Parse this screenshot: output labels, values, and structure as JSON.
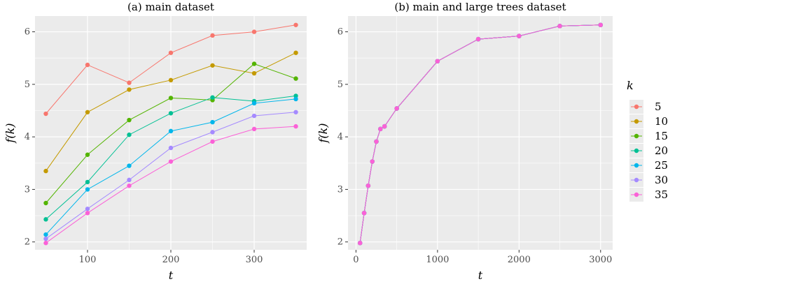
{
  "chart_data": [
    {
      "type": "line",
      "title": "(a) main dataset",
      "xlabel": "t",
      "ylabel": "f(k)",
      "xlim": [
        37,
        363
      ],
      "ylim": [
        1.85,
        6.3
      ],
      "xticks": [
        100,
        200,
        300
      ],
      "yticks": [
        2,
        3,
        4,
        5,
        6
      ],
      "x": [
        50,
        100,
        150,
        200,
        250,
        300,
        350
      ],
      "series": [
        {
          "name": "5",
          "color": "#F8766D",
          "values": [
            4.44,
            5.37,
            5.03,
            5.6,
            5.93,
            6.0,
            6.13
          ]
        },
        {
          "name": "10",
          "color": "#C49A00",
          "values": [
            3.35,
            4.47,
            4.9,
            5.08,
            5.36,
            5.21,
            5.6
          ]
        },
        {
          "name": "15",
          "color": "#53B400",
          "values": [
            2.74,
            3.66,
            4.32,
            4.74,
            4.7,
            5.39,
            5.11
          ]
        },
        {
          "name": "20",
          "color": "#00C094",
          "values": [
            2.43,
            3.14,
            4.04,
            4.45,
            4.75,
            4.68,
            4.78
          ]
        },
        {
          "name": "25",
          "color": "#00B6EB",
          "values": [
            2.14,
            3.0,
            3.45,
            4.11,
            4.28,
            4.64,
            4.72
          ]
        },
        {
          "name": "30",
          "color": "#A58AFF",
          "values": [
            2.06,
            2.63,
            3.18,
            3.79,
            4.09,
            4.4,
            4.47
          ]
        },
        {
          "name": "35",
          "color": "#FB61D7",
          "values": [
            1.98,
            2.55,
            3.07,
            3.53,
            3.91,
            4.15,
            4.2
          ]
        }
      ]
    },
    {
      "type": "line",
      "title": "(b) main and large trees dataset",
      "xlabel": "t",
      "ylabel": "f(k)",
      "xlim": [
        -98,
        3148
      ],
      "ylim": [
        1.85,
        6.3
      ],
      "xticks": [
        0,
        1000,
        2000,
        3000
      ],
      "yticks": [
        2,
        3,
        4,
        5,
        6
      ],
      "x": [
        50,
        100,
        150,
        200,
        250,
        300,
        350,
        500,
        1000,
        1500,
        2000,
        2500,
        3000
      ],
      "series": [
        {
          "name": "5",
          "color": "#F8766D",
          "values": [
            1.98,
            2.55,
            3.07,
            3.53,
            3.91,
            4.15,
            4.2,
            4.54,
            5.44,
            5.86,
            5.92,
            6.11,
            6.13
          ]
        },
        {
          "name": "10",
          "color": "#C49A00",
          "values": [
            1.98,
            2.55,
            3.07,
            3.53,
            3.91,
            4.15,
            4.2,
            4.54,
            5.44,
            5.86,
            5.92,
            6.11,
            6.13
          ]
        },
        {
          "name": "15",
          "color": "#53B400",
          "values": [
            1.98,
            2.55,
            3.07,
            3.53,
            3.91,
            4.15,
            4.2,
            4.54,
            5.44,
            5.86,
            5.92,
            6.11,
            6.13
          ]
        },
        {
          "name": "20",
          "color": "#00C094",
          "values": [
            1.98,
            2.55,
            3.07,
            3.53,
            3.91,
            4.15,
            4.2,
            4.54,
            5.44,
            5.86,
            5.92,
            6.11,
            6.13
          ]
        },
        {
          "name": "25",
          "color": "#00B6EB",
          "values": [
            1.98,
            2.55,
            3.07,
            3.53,
            3.91,
            4.15,
            4.2,
            4.54,
            5.44,
            5.86,
            5.92,
            6.11,
            6.13
          ]
        },
        {
          "name": "30",
          "color": "#A58AFF",
          "values": [
            1.98,
            2.55,
            3.07,
            3.53,
            3.91,
            4.15,
            4.2,
            4.54,
            5.44,
            5.86,
            5.92,
            6.11,
            6.13
          ]
        },
        {
          "name": "35",
          "color": "#FB61D7",
          "values": [
            1.98,
            2.55,
            3.07,
            3.53,
            3.91,
            4.15,
            4.2,
            4.54,
            5.44,
            5.86,
            5.92,
            6.11,
            6.13
          ]
        }
      ]
    }
  ],
  "legend": {
    "title": "k",
    "placement": "right",
    "items": [
      {
        "label": "5",
        "color": "#F8766D"
      },
      {
        "label": "10",
        "color": "#C49A00"
      },
      {
        "label": "15",
        "color": "#53B400"
      },
      {
        "label": "20",
        "color": "#00C094"
      },
      {
        "label": "25",
        "color": "#00B6EB"
      },
      {
        "label": "30",
        "color": "#A58AFF"
      },
      {
        "label": "35",
        "color": "#FB61D7"
      }
    ]
  },
  "style": {
    "panel_background": "#EBEBEB",
    "grid_color": "#FFFFFF"
  }
}
